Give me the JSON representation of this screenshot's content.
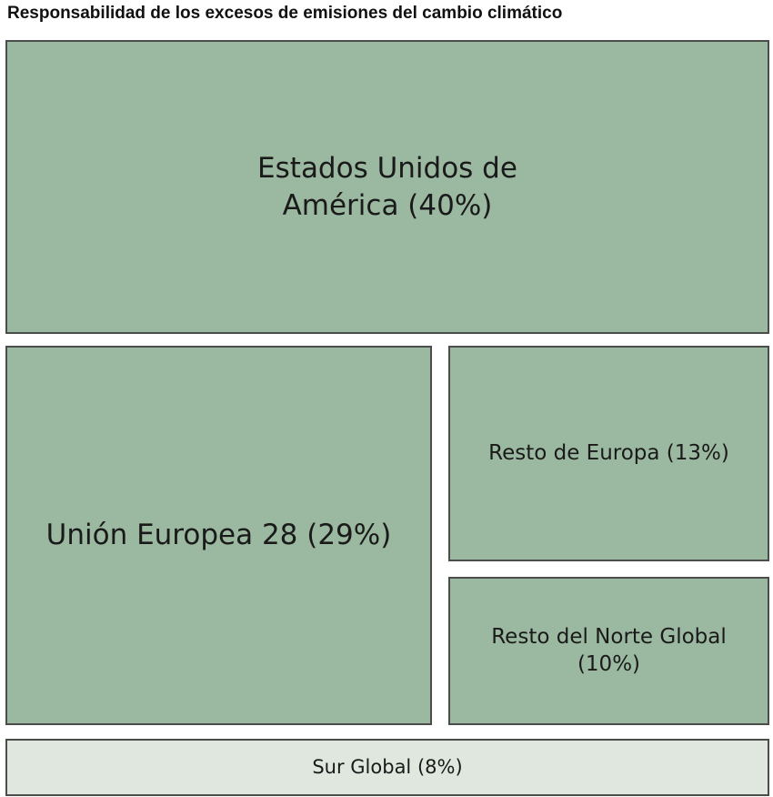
{
  "chart_data": {
    "type": "treemap",
    "title": "Responsabilidad de los excesos de emisiones del cambio climático",
    "items": [
      {
        "label": "Estados Unidos de América (40%)",
        "value": 40,
        "color": "#9bb8a0"
      },
      {
        "label": "Unión Europea 28 (29%)",
        "value": 29,
        "color": "#9bb8a0"
      },
      {
        "label": "Resto de Europa (13%)",
        "value": 13,
        "color": "#9bb8a0"
      },
      {
        "label": "Resto del Norte Global (10%)",
        "value": 10,
        "color": "#9bb8a0"
      },
      {
        "label": "Sur Global (8%)",
        "value": 8,
        "color": "#dfe7df"
      }
    ]
  }
}
